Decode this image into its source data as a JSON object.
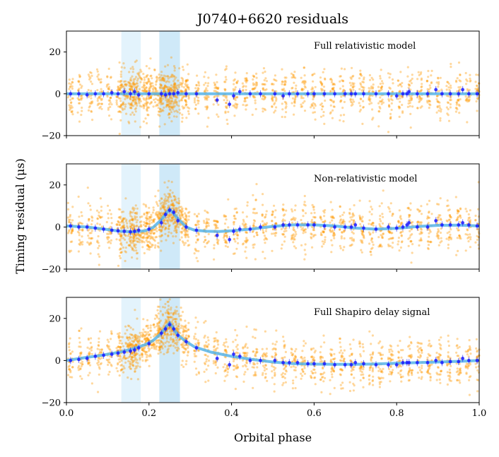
{
  "colors": {
    "residual_points": "#ff9900",
    "averaged_points": "#1c1cff",
    "model_curve": "#56b4e9",
    "shaded_band_dark": "#cfe9f8",
    "shaded_band_light": "#e3f3fc"
  },
  "chart_data": {
    "type": "scatter",
    "title": "J0740+6620 residuals",
    "xlabel": "Orbital phase",
    "ylabel": "Timing residual (μs)",
    "xlim": [
      0.0,
      1.0
    ],
    "ylim": [
      -20,
      30
    ],
    "xticks": [
      0.0,
      0.2,
      0.4,
      0.6,
      0.8,
      1.0
    ],
    "xtick_labels": [
      "0.0",
      "0.2",
      "0.4",
      "0.6",
      "0.8",
      "1.0"
    ],
    "yticks": [
      -20,
      0,
      20
    ],
    "ytick_labels": [
      "−20",
      "0",
      "20"
    ],
    "shaded_regions": [
      {
        "x": [
          0.133,
          0.18
        ],
        "shade": "light"
      },
      {
        "x": [
          0.225,
          0.275
        ],
        "shade": "dark"
      }
    ],
    "grid": false,
    "panels": [
      {
        "annotation": "Full relativistic model",
        "curve": {
          "x": [
            0.0,
            0.1,
            0.2,
            0.3,
            0.4,
            0.5,
            0.6,
            0.7,
            0.8,
            0.9,
            1.0
          ],
          "y": [
            0,
            0,
            0,
            0,
            0,
            0,
            0,
            0,
            0,
            0,
            0
          ]
        },
        "averaged_points": {
          "x": [
            0.01,
            0.03,
            0.05,
            0.07,
            0.09,
            0.11,
            0.125,
            0.14,
            0.155,
            0.165,
            0.175,
            0.2,
            0.23,
            0.24,
            0.25,
            0.26,
            0.27,
            0.29,
            0.315,
            0.365,
            0.395,
            0.405,
            0.42,
            0.445,
            0.47,
            0.505,
            0.525,
            0.54,
            0.56,
            0.585,
            0.6,
            0.625,
            0.65,
            0.675,
            0.69,
            0.7,
            0.72,
            0.75,
            0.78,
            0.8,
            0.815,
            0.825,
            0.83,
            0.85,
            0.875,
            0.895,
            0.91,
            0.93,
            0.95,
            0.96,
            0.975,
            0.995
          ],
          "y": [
            0,
            0,
            -0.5,
            0,
            0,
            0.5,
            0,
            1,
            0,
            1,
            -0.5,
            0,
            0,
            -0.5,
            0,
            0,
            0.5,
            0,
            0,
            -3,
            -5,
            -1,
            1,
            0,
            0,
            0,
            -1,
            0,
            0,
            0,
            0,
            0,
            0,
            0,
            0,
            0,
            0,
            0,
            0,
            -1,
            0,
            0,
            1,
            0,
            0,
            2,
            0,
            0,
            0,
            2,
            0,
            0
          ]
        }
      },
      {
        "annotation": "Non-relativistic model",
        "curve": {
          "x": [
            0.0,
            0.05,
            0.1,
            0.13,
            0.16,
            0.19,
            0.21,
            0.23,
            0.25,
            0.27,
            0.29,
            0.31,
            0.34,
            0.37,
            0.4,
            0.45,
            0.5,
            0.55,
            0.6,
            0.65,
            0.7,
            0.75,
            0.8,
            0.85,
            0.9,
            0.95,
            1.0
          ],
          "y": [
            0.5,
            0,
            -1.2,
            -2,
            -2.3,
            -1.8,
            -0.2,
            3.5,
            8.5,
            4,
            0,
            -1.5,
            -2,
            -2.1,
            -1.8,
            -0.9,
            0.3,
            1,
            1,
            0.5,
            -0.5,
            -1,
            -0.6,
            0.2,
            0.8,
            0.9,
            0.5
          ]
        },
        "averaged_points": {
          "x": [
            0.01,
            0.03,
            0.05,
            0.07,
            0.09,
            0.11,
            0.125,
            0.14,
            0.155,
            0.165,
            0.175,
            0.2,
            0.23,
            0.24,
            0.25,
            0.26,
            0.27,
            0.29,
            0.315,
            0.365,
            0.395,
            0.405,
            0.42,
            0.445,
            0.47,
            0.505,
            0.525,
            0.54,
            0.56,
            0.585,
            0.6,
            0.625,
            0.65,
            0.675,
            0.69,
            0.7,
            0.72,
            0.75,
            0.78,
            0.8,
            0.815,
            0.825,
            0.83,
            0.85,
            0.875,
            0.895,
            0.91,
            0.93,
            0.95,
            0.96,
            0.975,
            0.995
          ],
          "y": [
            0.5,
            0,
            0,
            -0.5,
            -1,
            -1.5,
            -1.8,
            -2,
            -2.3,
            -2,
            -1.5,
            -1,
            2,
            6,
            8,
            7,
            3,
            0,
            -1.5,
            -4,
            -6,
            -2,
            -1,
            -1,
            0,
            0,
            1,
            1,
            1,
            1,
            1,
            0.5,
            0,
            0,
            0,
            1,
            -0.5,
            -1,
            0,
            -0.5,
            0,
            1,
            2,
            0,
            0,
            3,
            1,
            1,
            1,
            2,
            1,
            0.5
          ]
        }
      },
      {
        "annotation": "Full Shapiro delay signal",
        "curve": {
          "x": [
            0.0,
            0.05,
            0.08,
            0.1,
            0.13,
            0.16,
            0.19,
            0.21,
            0.23,
            0.24,
            0.25,
            0.26,
            0.27,
            0.29,
            0.31,
            0.35,
            0.4,
            0.45,
            0.5,
            0.55,
            0.6,
            0.65,
            0.7,
            0.75,
            0.8,
            0.85,
            0.9,
            0.95,
            1.0
          ],
          "y": [
            0,
            1.5,
            2.3,
            3,
            4,
            5.5,
            7.5,
            9.5,
            13,
            15.5,
            18,
            15,
            12,
            9,
            6.5,
            4,
            2,
            0.5,
            -0.7,
            -1.5,
            -1.7,
            -1.8,
            -1.8,
            -1.6,
            -1.3,
            -1,
            -0.7,
            -0.4,
            0
          ]
        },
        "averaged_points": {
          "x": [
            0.01,
            0.03,
            0.05,
            0.07,
            0.09,
            0.11,
            0.125,
            0.14,
            0.155,
            0.165,
            0.175,
            0.2,
            0.23,
            0.24,
            0.25,
            0.26,
            0.27,
            0.29,
            0.315,
            0.365,
            0.395,
            0.405,
            0.42,
            0.445,
            0.47,
            0.505,
            0.525,
            0.54,
            0.56,
            0.585,
            0.6,
            0.625,
            0.65,
            0.675,
            0.69,
            0.7,
            0.72,
            0.75,
            0.78,
            0.8,
            0.815,
            0.825,
            0.83,
            0.85,
            0.875,
            0.895,
            0.91,
            0.93,
            0.95,
            0.96,
            0.975,
            0.995
          ],
          "y": [
            0,
            0.5,
            1,
            2,
            2.5,
            3,
            3.5,
            4,
            4.5,
            5,
            6,
            8,
            13,
            15,
            17,
            15,
            12,
            9,
            6,
            1,
            -2,
            3,
            2,
            0,
            0,
            0,
            -1,
            -1,
            -1,
            -1.5,
            -1.5,
            -1.5,
            -2,
            -2,
            -2,
            -1,
            -1.5,
            -2,
            -2,
            -2,
            -1,
            -1,
            -1,
            -1,
            -1,
            0,
            -1,
            -0.5,
            -0.5,
            1,
            0,
            0
          ]
        }
      }
    ]
  }
}
